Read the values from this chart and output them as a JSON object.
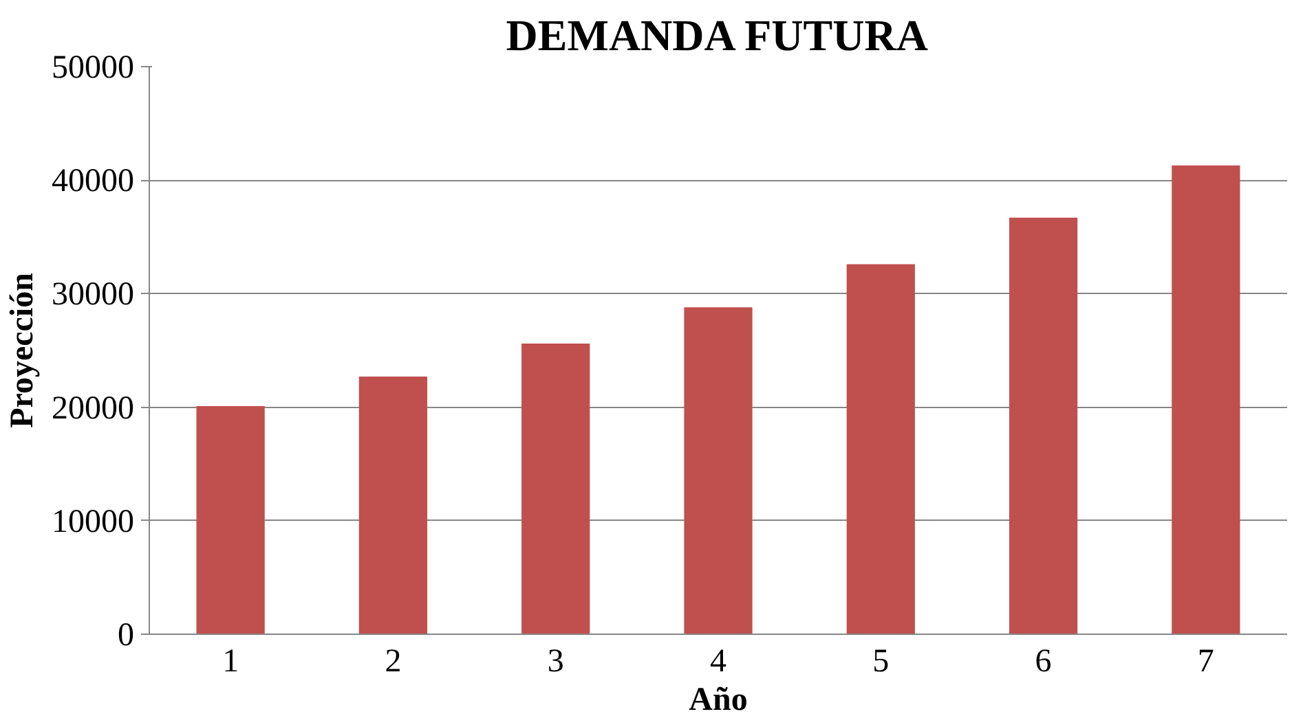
{
  "chart_data": {
    "type": "bar",
    "title": "DEMANDA FUTURA",
    "xlabel": "Año",
    "ylabel": "Proyección",
    "categories": [
      "1",
      "2",
      "3",
      "4",
      "5",
      "6",
      "7"
    ],
    "values": [
      20100,
      22700,
      25600,
      28800,
      32600,
      36700,
      41300
    ],
    "color": "#c0504d",
    "ylim": [
      0,
      50000
    ],
    "yticks": [
      0,
      10000,
      20000,
      30000,
      40000,
      50000
    ],
    "grid": "y"
  }
}
